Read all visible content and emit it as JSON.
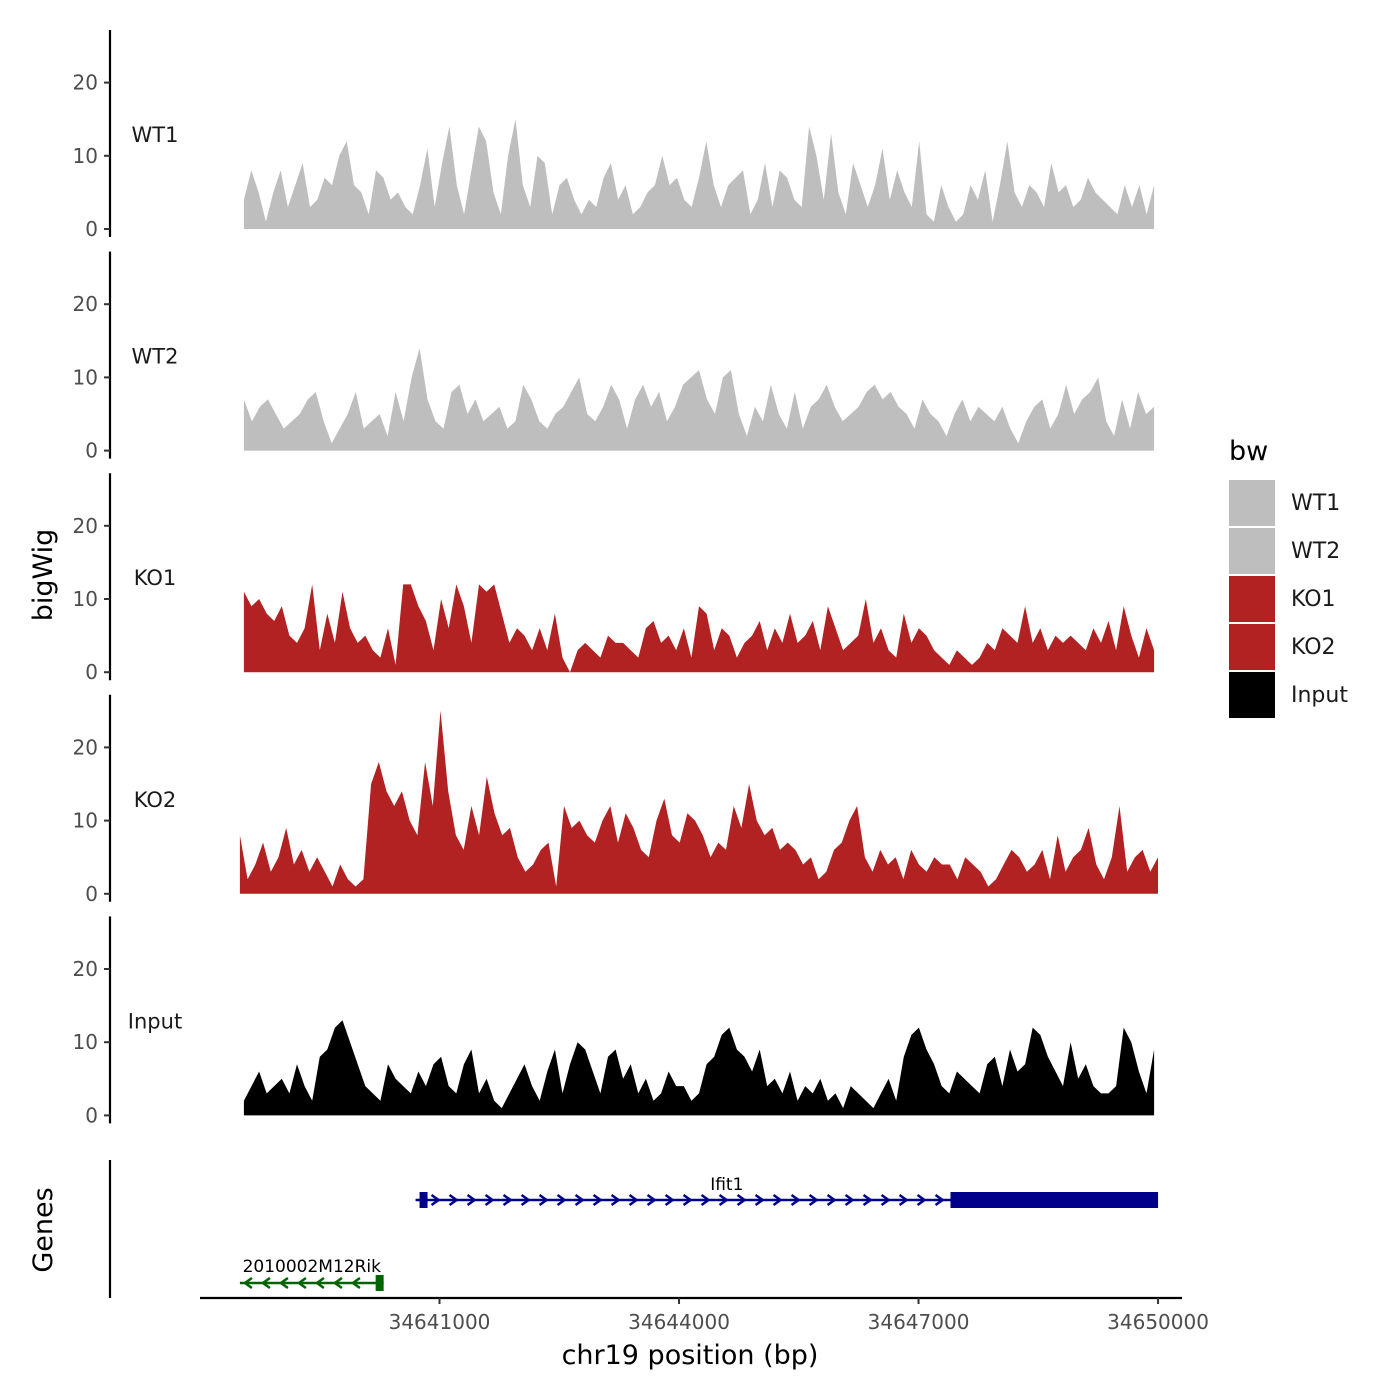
{
  "chart_data": {
    "type": "area",
    "chromosome": "chr19",
    "xlabel": "chr19 position (bp)",
    "ylabel": "bigWig",
    "genes_track_label": "Genes",
    "xlim": [
      34638000,
      34650300
    ],
    "x_ticks": [
      34641000,
      34644000,
      34647000,
      34650000
    ],
    "x_tick_labels": [
      "34641000",
      "34644000",
      "34647000",
      "34650000"
    ],
    "ylim": [
      0,
      27
    ],
    "y_ticks": [
      0,
      10,
      20
    ],
    "y_tick_labels": [
      "0",
      "10",
      "20"
    ],
    "legend": {
      "title": "bw",
      "entries": [
        {
          "label": "WT1",
          "color": "#bebebe"
        },
        {
          "label": "WT2",
          "color": "#bebebe"
        },
        {
          "label": "KO1",
          "color": "#b22222"
        },
        {
          "label": "KO2",
          "color": "#b22222"
        },
        {
          "label": "Input",
          "color": "#000000"
        }
      ]
    },
    "tracks": [
      {
        "name": "WT1",
        "color": "#bebebe",
        "x_start": 34638550,
        "x_end": 34649950,
        "values": [
          4,
          8,
          5,
          1,
          5,
          8,
          3,
          6,
          9,
          3,
          4,
          7,
          6,
          10,
          12,
          6,
          5,
          2,
          8,
          7,
          4,
          5,
          3,
          2,
          6,
          11,
          3,
          9,
          14,
          6,
          2,
          8,
          14,
          12,
          5,
          2,
          10,
          15,
          6,
          3,
          10,
          9,
          2,
          6,
          7,
          4,
          2,
          4,
          3,
          7,
          9,
          4,
          6,
          2,
          3,
          5,
          6,
          10,
          6,
          7,
          4,
          3,
          7,
          12,
          6,
          3,
          6,
          7,
          8,
          2,
          4,
          9,
          3,
          8,
          7,
          4,
          3,
          14,
          10,
          4,
          13,
          5,
          2,
          9,
          6,
          3,
          6,
          11,
          4,
          8,
          5,
          3,
          12,
          2,
          1,
          6,
          3,
          1,
          2,
          6,
          4,
          8,
          1,
          6,
          12,
          5,
          3,
          6,
          5,
          3,
          9,
          5,
          6,
          3,
          4,
          7,
          5,
          4,
          3,
          2,
          6,
          3,
          6,
          2,
          6
        ]
      },
      {
        "name": "WT2",
        "color": "#bebebe",
        "x_start": 34638550,
        "x_end": 34649950,
        "values": [
          7,
          4,
          6,
          7,
          5,
          3,
          4,
          5,
          7,
          8,
          4,
          1,
          3,
          5,
          8,
          3,
          4,
          5,
          2,
          8,
          4,
          10,
          14,
          7,
          4,
          3,
          8,
          9,
          5,
          7,
          4,
          5,
          6,
          3,
          4,
          9,
          7,
          4,
          3,
          5,
          6,
          8,
          10,
          5,
          4,
          6,
          9,
          7,
          3,
          7,
          9,
          6,
          8,
          4,
          6,
          9,
          10,
          11,
          7,
          5,
          10,
          11,
          5,
          2,
          6,
          4,
          9,
          5,
          3,
          8,
          3,
          6,
          7,
          9,
          6,
          4,
          5,
          6,
          8,
          9,
          7,
          8,
          6,
          5,
          3,
          7,
          5,
          4,
          2,
          5,
          7,
          4,
          6,
          5,
          4,
          6,
          3,
          1,
          4,
          6,
          7,
          3,
          5,
          9,
          5,
          7,
          8,
          10,
          4,
          2,
          7,
          3,
          8,
          5,
          6
        ]
      },
      {
        "name": "KO1",
        "color": "#b22222",
        "x_start": 34638550,
        "x_end": 34649950,
        "values": [
          11,
          9,
          10,
          8,
          7,
          9,
          5,
          4,
          6,
          12,
          3,
          8,
          4,
          11,
          6,
          4,
          5,
          3,
          2,
          6,
          1,
          12,
          12,
          9,
          7,
          3,
          10,
          6,
          12,
          9,
          4,
          12,
          11,
          12,
          8,
          4,
          6,
          5,
          3,
          6,
          3,
          8,
          2,
          0,
          3,
          4,
          3,
          2,
          5,
          4,
          4,
          3,
          2,
          6,
          7,
          4,
          5,
          3,
          6,
          2,
          9,
          8,
          3,
          6,
          5,
          2,
          4,
          5,
          7,
          3,
          6,
          4,
          8,
          4,
          5,
          7,
          3,
          9,
          6,
          3,
          4,
          5,
          10,
          4,
          6,
          3,
          2,
          8,
          4,
          6,
          5,
          3,
          2,
          1,
          3,
          2,
          1,
          2,
          4,
          3,
          6,
          5,
          4,
          9,
          4,
          6,
          3,
          5,
          4,
          5,
          4,
          3,
          6,
          4,
          7,
          3,
          9,
          5,
          2,
          6,
          3
        ]
      },
      {
        "name": "KO2",
        "color": "#b22222",
        "x_start": 34638500,
        "x_end": 34650000,
        "values": [
          8,
          2,
          4,
          7,
          3,
          5,
          9,
          4,
          6,
          3,
          5,
          3,
          1,
          4,
          2,
          1,
          2,
          15,
          18,
          14,
          12,
          14,
          10,
          8,
          18,
          12,
          25,
          14,
          8,
          6,
          12,
          8,
          16,
          11,
          8,
          9,
          5,
          3,
          4,
          6,
          7,
          1,
          12,
          9,
          10,
          8,
          7,
          10,
          12,
          7,
          11,
          9,
          6,
          5,
          10,
          13,
          8,
          7,
          11,
          10,
          8,
          5,
          7,
          6,
          12,
          9,
          15,
          10,
          8,
          9,
          6,
          7,
          6,
          4,
          5,
          2,
          3,
          6,
          7,
          10,
          12,
          5,
          3,
          6,
          4,
          5,
          2,
          6,
          4,
          3,
          5,
          4,
          4,
          2,
          5,
          4,
          3,
          1,
          2,
          4,
          6,
          5,
          3,
          4,
          6,
          2,
          8,
          3,
          5,
          6,
          9,
          4,
          2,
          5,
          12,
          3,
          5,
          6,
          3,
          5
        ]
      },
      {
        "name": "Input",
        "color": "#000000",
        "x_start": 34638550,
        "x_end": 34649950,
        "values": [
          2,
          4,
          6,
          3,
          4,
          5,
          3,
          7,
          4,
          2,
          8,
          9,
          12,
          13,
          10,
          7,
          4,
          3,
          2,
          7,
          5,
          4,
          3,
          6,
          4,
          7,
          8,
          4,
          3,
          7,
          9,
          3,
          5,
          2,
          1,
          3,
          5,
          7,
          4,
          2,
          6,
          9,
          3,
          7,
          10,
          9,
          6,
          3,
          8,
          9,
          5,
          7,
          3,
          5,
          2,
          3,
          6,
          4,
          4,
          2,
          3,
          7,
          8,
          11,
          12,
          9,
          8,
          6,
          9,
          4,
          5,
          3,
          6,
          2,
          4,
          3,
          5,
          2,
          3,
          1,
          4,
          3,
          2,
          1,
          3,
          5,
          2,
          8,
          11,
          12,
          9,
          7,
          4,
          3,
          6,
          5,
          4,
          3,
          7,
          8,
          4,
          9,
          6,
          7,
          12,
          11,
          8,
          6,
          4,
          10,
          5,
          7,
          4,
          3,
          3,
          4,
          12,
          10,
          6,
          3,
          9
        ]
      }
    ],
    "genes": [
      {
        "name": "Ifit1",
        "color": "#00008b",
        "strand": "+",
        "start": 34640700,
        "end": 34650000,
        "small_exon": [
          34640750,
          34640850
        ],
        "large_exon": [
          34647400,
          34650000
        ]
      },
      {
        "name": "2010002M12Rik",
        "color": "#006400",
        "strand": "-",
        "start": 34638500,
        "end": 34640300,
        "small_exon": [
          34640200,
          34640300
        ]
      }
    ]
  }
}
